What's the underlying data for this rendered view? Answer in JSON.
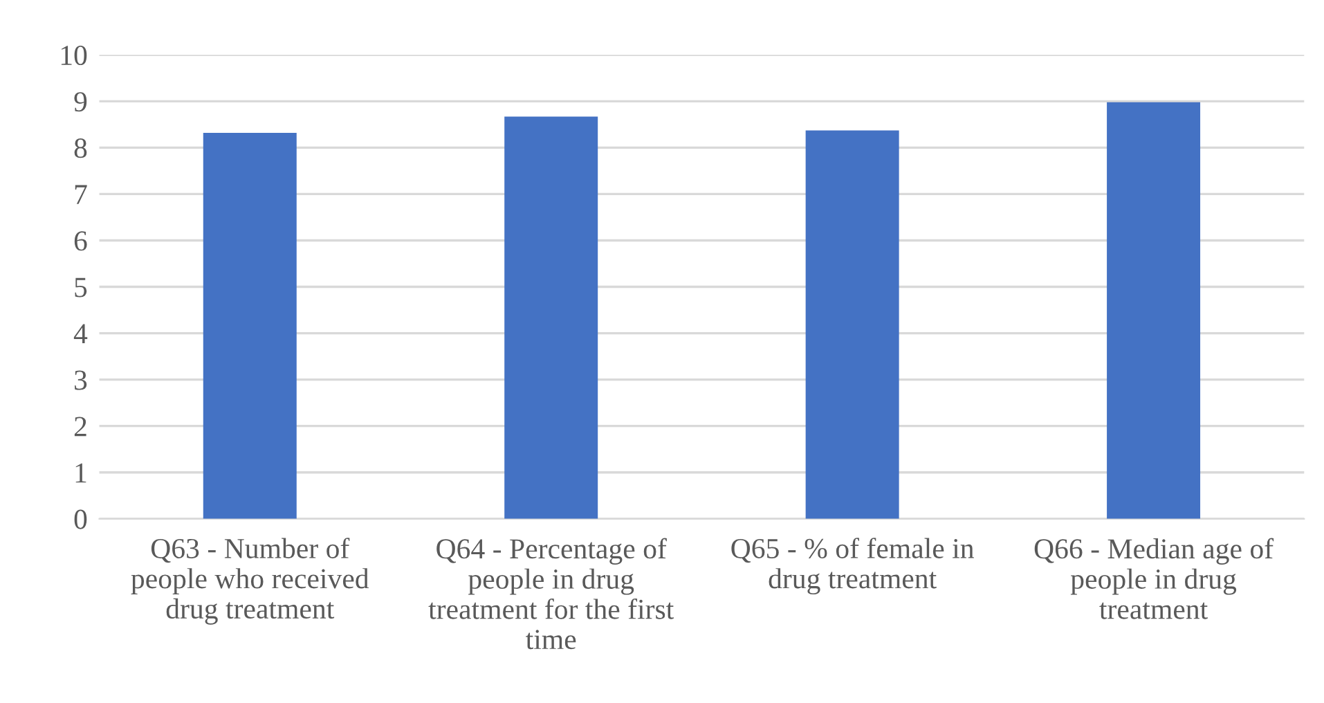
{
  "chart_data": {
    "type": "bar",
    "categories": [
      "Q63 - Number of\npeople who received\ndrug treatment",
      "Q64 - Percentage of\npeople in drug\ntreatment for the first\ntime",
      "Q65 - % of female in\ndrug treatment",
      "Q66 - Median age of\npeople in drug\ntreatment"
    ],
    "values": [
      8.32,
      8.67,
      8.37,
      8.98
    ],
    "color": "#4472c4",
    "ylim": [
      0,
      10
    ],
    "yticks": [
      0,
      1,
      2,
      3,
      4,
      5,
      6,
      7,
      8,
      9,
      10
    ],
    "grid": "y",
    "legend": false
  }
}
